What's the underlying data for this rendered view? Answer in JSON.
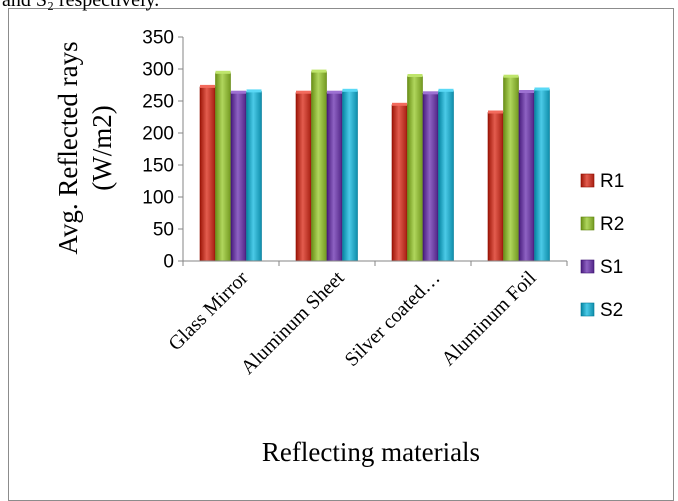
{
  "header_fragment": "and S₂ respectively.",
  "chart_data": {
    "type": "bar",
    "categories": [
      "Glass Mirror",
      "Aluminum Sheet",
      "Silver coated…",
      "Aluminum Foil"
    ],
    "series": [
      {
        "name": "R1",
        "values": [
          272,
          263,
          244,
          232
        ],
        "color": "#c0392b"
      },
      {
        "name": "R2",
        "values": [
          294,
          296,
          289,
          288
        ],
        "color": "#8db33a"
      },
      {
        "name": "S1",
        "values": [
          263,
          263,
          262,
          264
        ],
        "color": "#6b3fa0"
      },
      {
        "name": "S2",
        "values": [
          265,
          266,
          266,
          268
        ],
        "color": "#28a7c4"
      }
    ],
    "xlabel": "Reflecting materials",
    "ylabel_lines": [
      "Avg. Reflected  rays",
      "(W/m2)"
    ],
    "ylim": [
      0,
      350
    ],
    "yticks": [
      0,
      50,
      100,
      150,
      200,
      250,
      300,
      350
    ],
    "grid": false,
    "legend_position": "right"
  }
}
